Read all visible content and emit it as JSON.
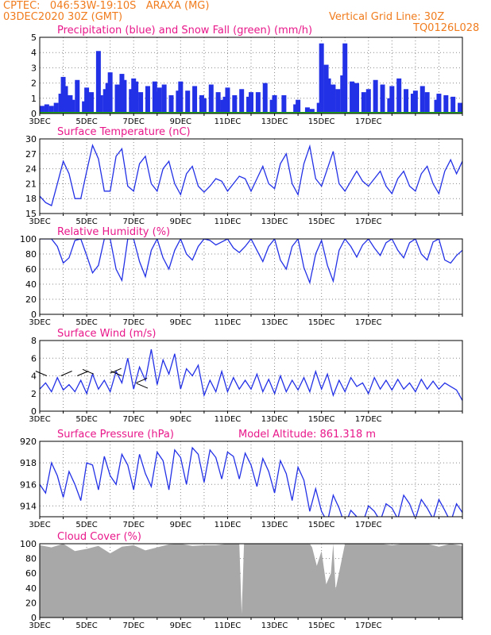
{
  "header": {
    "line1": "CPTEC:   046:53W-19:10S   ARAXA (MG)",
    "line2": "03DEC2020 30Z (GMT)",
    "vgrid": "Vertical Grid Line: 30Z",
    "code": "TQ0126L028"
  },
  "colors": {
    "series": "#2331e6",
    "snow": "#22a822",
    "cloud": "#a8a8a8",
    "title": "#e8178a",
    "header": "#f07c1e"
  },
  "x_labels": [
    "3DEC",
    "5DEC",
    "7DEC",
    "9DEC",
    "11DEC",
    "13DEC",
    "15DEC",
    "17DEC"
  ],
  "chart_data": [
    {
      "type": "bar",
      "title": "Precipitation (blue) and Snow Fall (green) (mm/h)",
      "ylim": [
        0,
        5
      ],
      "yticks": [
        0,
        1,
        2,
        3,
        4,
        5
      ],
      "x_unit": "days since 3DEC 00Z",
      "series": [
        {
          "name": "Precipitation",
          "x": [
            0.1,
            0.3,
            0.5,
            0.7,
            0.9,
            1.0,
            1.1,
            1.3,
            1.4,
            1.6,
            1.9,
            2.0,
            2.2,
            2.5,
            2.6,
            2.8,
            2.9,
            3.0,
            3.3,
            3.5,
            3.6,
            3.9,
            4.0,
            4.1,
            4.3,
            4.6,
            4.9,
            5.0,
            5.1,
            5.3,
            5.6,
            5.9,
            6.0,
            6.3,
            6.6,
            6.9,
            7.0,
            7.3,
            7.6,
            7.8,
            7.9,
            8.0,
            8.3,
            8.6,
            8.9,
            9.0,
            9.3,
            9.6,
            9.9,
            10.0,
            10.4,
            10.9,
            11.0,
            11.4,
            11.6,
            11.9,
            12.0,
            12.2,
            12.3,
            12.5,
            12.7,
            12.9,
            13.0,
            13.3,
            13.5,
            13.8,
            14.0,
            14.3,
            14.6,
            14.9,
            15.0,
            15.3,
            15.6,
            15.9,
            16.0,
            16.3,
            16.5,
            16.9,
            17.0,
            17.3,
            17.6,
            17.9
          ],
          "values": [
            0.5,
            0.6,
            0.5,
            0.7,
            1.3,
            2.4,
            1.8,
            1.2,
            0.9,
            2.2,
            0.8,
            1.7,
            1.4,
            4.1,
            1.2,
            1.6,
            2.0,
            2.7,
            1.9,
            2.6,
            2.2,
            1.6,
            2.3,
            2.1,
            1.4,
            1.8,
            2.1,
            1.4,
            1.7,
            1.9,
            1.2,
            1.5,
            2.1,
            1.5,
            1.8,
            1.2,
            1.0,
            1.9,
            1.4,
            0.9,
            1.1,
            1.7,
            1.2,
            1.6,
            1.1,
            1.4,
            1.4,
            2.0,
            0.9,
            1.2,
            1.2,
            0.6,
            0.9,
            0.4,
            0.3,
            0.7,
            4.6,
            3.2,
            2.3,
            1.9,
            1.6,
            2.5,
            4.6,
            2.1,
            2.0,
            1.4,
            1.6,
            2.2,
            1.9,
            1.0,
            1.8,
            2.3,
            1.6,
            1.3,
            1.5,
            1.8,
            1.4,
            0.9,
            1.3,
            1.2,
            1.1,
            0.7
          ]
        },
        {
          "name": "Snow Fall",
          "x": [],
          "values": []
        }
      ]
    },
    {
      "type": "line",
      "title": "Surface Temperature (nC)",
      "ylim": [
        15,
        30
      ],
      "yticks": [
        15,
        18,
        21,
        24,
        27,
        30
      ],
      "series": [
        {
          "x": [
            0,
            0.25,
            0.5,
            0.75,
            1.0,
            1.25,
            1.5,
            1.75,
            2.0,
            2.25,
            2.5,
            2.75,
            3.0,
            3.25,
            3.5,
            3.75,
            4.0,
            4.25,
            4.5,
            4.75,
            5.0,
            5.25,
            5.5,
            5.75,
            6.0,
            6.25,
            6.5,
            6.75,
            7.0,
            7.25,
            7.5,
            7.75,
            8.0,
            8.25,
            8.5,
            8.75,
            9.0,
            9.25,
            9.5,
            9.75,
            10.0,
            10.25,
            10.5,
            10.75,
            11.0,
            11.25,
            11.5,
            11.75,
            12.0,
            12.25,
            12.5,
            12.75,
            13.0,
            13.25,
            13.5,
            13.75,
            14.0,
            14.25,
            14.5,
            14.75,
            15.0,
            15.25,
            15.5,
            15.75,
            16.0,
            16.25,
            16.5,
            16.75,
            17.0,
            17.25,
            17.5,
            17.75,
            18.0
          ],
          "values": [
            18.5,
            17.2,
            16.6,
            21,
            25.5,
            23,
            18,
            18,
            23.5,
            28.7,
            26,
            19.5,
            19.5,
            26.5,
            28,
            20.5,
            19.5,
            25,
            26.5,
            21,
            19.5,
            24,
            25.5,
            21,
            18.8,
            23,
            24.5,
            20.5,
            19.3,
            20.5,
            22,
            21.5,
            19.5,
            21,
            22.5,
            22,
            19.5,
            22,
            24.5,
            21,
            20,
            25,
            27,
            21,
            18.8,
            25,
            28.5,
            22,
            20.5,
            24,
            27.5,
            21,
            19.5,
            21.5,
            23.5,
            21.5,
            20.5,
            22,
            23.5,
            20.5,
            19,
            22,
            23.5,
            20.5,
            19.5,
            23,
            24.5,
            21,
            19,
            23.5,
            25.8,
            23,
            25.5
          ]
        }
      ]
    },
    {
      "type": "line",
      "title": "Relative Humidity (%)",
      "ylim": [
        0,
        100
      ],
      "yticks": [
        0,
        20,
        40,
        60,
        80,
        100
      ],
      "series": [
        {
          "x": [
            0,
            0.25,
            0.5,
            0.75,
            1.0,
            1.25,
            1.5,
            1.75,
            2.0,
            2.25,
            2.5,
            2.75,
            3.0,
            3.25,
            3.5,
            3.75,
            4.0,
            4.25,
            4.5,
            4.75,
            5.0,
            5.25,
            5.5,
            5.75,
            6.0,
            6.25,
            6.5,
            6.75,
            7.0,
            7.25,
            7.5,
            7.75,
            8.0,
            8.25,
            8.5,
            8.75,
            9.0,
            9.25,
            9.5,
            9.75,
            10.0,
            10.25,
            10.5,
            10.75,
            11.0,
            11.25,
            11.5,
            11.75,
            12.0,
            12.25,
            12.5,
            12.75,
            13.0,
            13.25,
            13.5,
            13.75,
            14.0,
            14.25,
            14.5,
            14.75,
            15.0,
            15.25,
            15.5,
            15.75,
            16.0,
            16.25,
            16.5,
            16.75,
            17.0,
            17.25,
            17.5,
            17.75,
            18.0
          ],
          "values": [
            100,
            100,
            100,
            90,
            68,
            75,
            98,
            100,
            78,
            55,
            65,
            100,
            100,
            60,
            45,
            100,
            100,
            70,
            50,
            85,
            100,
            75,
            60,
            85,
            100,
            80,
            72,
            90,
            100,
            98,
            92,
            96,
            100,
            88,
            82,
            90,
            100,
            85,
            70,
            90,
            100,
            72,
            60,
            90,
            100,
            62,
            42,
            80,
            98,
            65,
            44,
            85,
            100,
            90,
            76,
            92,
            100,
            88,
            78,
            95,
            100,
            85,
            75,
            95,
            100,
            80,
            72,
            96,
            100,
            72,
            68,
            78,
            85
          ]
        }
      ]
    },
    {
      "type": "line",
      "title": "Surface Wind (m/s)",
      "ylim": [
        0,
        8
      ],
      "yticks": [
        0,
        2,
        4,
        6,
        8
      ],
      "series": [
        {
          "x": [
            0,
            0.25,
            0.5,
            0.75,
            1.0,
            1.25,
            1.5,
            1.75,
            2.0,
            2.25,
            2.5,
            2.75,
            3.0,
            3.25,
            3.5,
            3.75,
            4.0,
            4.25,
            4.5,
            4.75,
            5.0,
            5.25,
            5.5,
            5.75,
            6.0,
            6.25,
            6.5,
            6.75,
            7.0,
            7.25,
            7.5,
            7.75,
            8.0,
            8.25,
            8.5,
            8.75,
            9.0,
            9.25,
            9.5,
            9.75,
            10.0,
            10.25,
            10.5,
            10.75,
            11.0,
            11.25,
            11.5,
            11.75,
            12.0,
            12.25,
            12.5,
            12.75,
            13.0,
            13.25,
            13.5,
            13.75,
            14.0,
            14.25,
            14.5,
            14.75,
            15.0,
            15.25,
            15.5,
            15.75,
            16.0,
            16.25,
            16.5,
            16.75,
            17.0,
            17.25,
            17.5,
            17.75,
            18.0
          ],
          "values": [
            2.5,
            3.2,
            2.2,
            3.8,
            2.4,
            3.0,
            2.2,
            3.5,
            2.0,
            4.2,
            2.5,
            3.5,
            2.2,
            4.5,
            3.2,
            6.0,
            2.5,
            5.0,
            3.5,
            7.0,
            3.0,
            5.8,
            4.2,
            6.5,
            2.5,
            4.8,
            4.0,
            5.2,
            1.8,
            3.5,
            2.2,
            4.5,
            2.2,
            3.8,
            2.5,
            3.5,
            2.5,
            4.2,
            2.2,
            3.6,
            2.0,
            4.0,
            2.2,
            3.5,
            2.4,
            3.8,
            2.2,
            4.5,
            2.5,
            4.2,
            1.8,
            3.5,
            2.2,
            3.8,
            2.8,
            3.2,
            2.0,
            3.8,
            2.5,
            3.5,
            2.4,
            3.6,
            2.5,
            3.2,
            2.2,
            3.6,
            2.5,
            3.4,
            2.5,
            3.2,
            2.8,
            2.4,
            1.2
          ]
        }
      ]
    },
    {
      "type": "line",
      "title": "Surface Pressure (hPa)",
      "annotation": "Model Altitude: 861.318 m",
      "ylim": [
        913,
        920
      ],
      "yticks": [
        914,
        916,
        918,
        920
      ],
      "series": [
        {
          "x": [
            0,
            0.25,
            0.5,
            0.75,
            1.0,
            1.25,
            1.5,
            1.75,
            2.0,
            2.25,
            2.5,
            2.75,
            3.0,
            3.25,
            3.5,
            3.75,
            4.0,
            4.25,
            4.5,
            4.75,
            5.0,
            5.25,
            5.5,
            5.75,
            6.0,
            6.25,
            6.5,
            6.75,
            7.0,
            7.25,
            7.5,
            7.75,
            8.0,
            8.25,
            8.5,
            8.75,
            9.0,
            9.25,
            9.5,
            9.75,
            10.0,
            10.25,
            10.5,
            10.75,
            11.0,
            11.25,
            11.5,
            11.75,
            12.0,
            12.25,
            12.5,
            12.75,
            13.0,
            13.25,
            13.5,
            13.75,
            14.0,
            14.25,
            14.5,
            14.75,
            15.0,
            15.25,
            15.5,
            15.75,
            16.0,
            16.25,
            16.5,
            16.75,
            17.0,
            17.25,
            17.5,
            17.75,
            18.0
          ],
          "values": [
            916,
            915.2,
            918,
            916.8,
            914.8,
            917.2,
            916,
            914.5,
            918,
            917.8,
            915.5,
            918.6,
            916.8,
            916,
            918.8,
            917.8,
            915.5,
            918.8,
            917,
            915.8,
            919,
            918.2,
            915.5,
            919.2,
            918.5,
            916,
            919.4,
            918.8,
            916.2,
            919.2,
            918.5,
            916.5,
            919.0,
            918.6,
            916.5,
            918.9,
            917.8,
            915.8,
            918.4,
            917.2,
            915.2,
            918.2,
            917,
            914.5,
            917.6,
            916.4,
            913.5,
            915.6,
            913.5,
            912.5,
            915,
            913.8,
            912.2,
            913.6,
            913.0,
            912.4,
            914.0,
            913.5,
            912.6,
            914.2,
            913.8,
            912.8,
            915.0,
            914.2,
            912.8,
            914.6,
            913.8,
            912.8,
            914.6,
            913.6,
            912.5,
            914.2,
            913.4
          ]
        }
      ]
    },
    {
      "type": "area",
      "title": "Cloud Cover (%)",
      "ylim": [
        0,
        100
      ],
      "yticks": [
        0,
        20,
        40,
        60,
        80,
        100
      ],
      "series": [
        {
          "x": [
            0,
            0.5,
            1.0,
            1.5,
            2.0,
            2.5,
            3.0,
            3.5,
            4.0,
            4.5,
            5.0,
            5.5,
            6.0,
            6.5,
            7.0,
            7.5,
            8.0,
            8.5,
            8.6,
            8.7,
            9.0,
            9.5,
            10.0,
            10.5,
            11.0,
            11.5,
            11.6,
            11.8,
            12.0,
            12.2,
            12.4,
            12.5,
            12.6,
            13.0,
            13.5,
            14.0,
            14.5,
            15.0,
            15.5,
            16.0,
            16.5,
            17.0,
            17.5,
            18.0
          ],
          "values": [
            98,
            95,
            100,
            90,
            93,
            97,
            87,
            96,
            98,
            91,
            95,
            99,
            100,
            97,
            98,
            98,
            100,
            100,
            5,
            100,
            100,
            100,
            100,
            100,
            100,
            100,
            95,
            70,
            90,
            45,
            60,
            100,
            38,
            100,
            100,
            100,
            100,
            98,
            100,
            100,
            100,
            96,
            100,
            97
          ]
        }
      ]
    }
  ]
}
